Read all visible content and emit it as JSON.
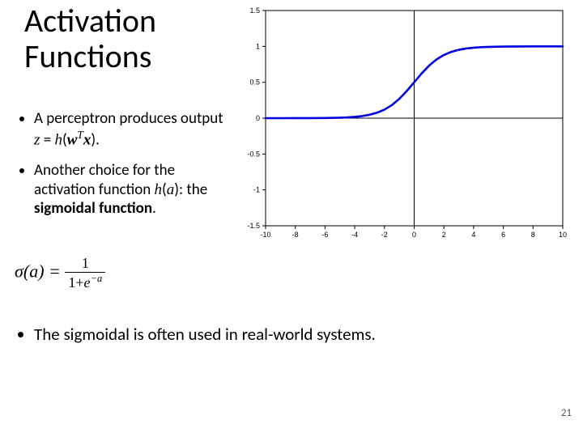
{
  "title_line1": "Activation",
  "title_line2": "Functions",
  "bullet1_pre": "A perceptron produces output ",
  "bullet1_math_z": "z",
  "bullet1_math_eq": " = ",
  "bullet1_math_h": "h",
  "bullet1_math_open": "(",
  "bullet1_math_w": "w",
  "bullet1_math_T": "T",
  "bullet1_math_x": "x",
  "bullet1_math_close": ")",
  "bullet1_post": ".",
  "bullet2_pre": "Another choice for the activation function ",
  "bullet2_math_h": "h",
  "bullet2_math_open": "(",
  "bullet2_math_a": "a",
  "bullet2_math_close": ")",
  "bullet2_mid": ": the ",
  "bullet2_bold": "sigmoidal function",
  "bullet2_post": ".",
  "formula_sigma": "σ",
  "formula_open": "(",
  "formula_a": "a",
  "formula_close": ")",
  "formula_eq": " = ",
  "formula_num": "1",
  "formula_den_1": "1+",
  "formula_den_e": "e",
  "formula_den_exp": "−a",
  "bullet3": "The sigmoidal is often used in real-world systems.",
  "page_number": "21",
  "chart": {
    "type": "line",
    "xlim": [
      -10,
      10
    ],
    "ylim": [
      -1.5,
      1.5
    ],
    "xticks": [
      -10,
      -8,
      -6,
      -4,
      -2,
      0,
      2,
      4,
      6,
      8,
      10
    ],
    "yticks": [
      -1.5,
      -1,
      -0.5,
      0,
      0.5,
      1,
      1.5
    ],
    "tick_fontsize": 9,
    "axis_box_color": "#000000",
    "zero_axis_color": "#000000",
    "line_color": "#0000e0",
    "line_width": 2.6,
    "background_color": "#ffffff",
    "tick_label_color": "#000000",
    "data": [
      {
        "x": -10,
        "y": 4.54e-05
      },
      {
        "x": -9,
        "y": 0.000123
      },
      {
        "x": -8,
        "y": 0.000335
      },
      {
        "x": -7,
        "y": 0.000911
      },
      {
        "x": -6,
        "y": 0.002473
      },
      {
        "x": -5,
        "y": 0.006693
      },
      {
        "x": -4.5,
        "y": 0.010987
      },
      {
        "x": -4,
        "y": 0.017986
      },
      {
        "x": -3.5,
        "y": 0.029312
      },
      {
        "x": -3,
        "y": 0.047426
      },
      {
        "x": -2.5,
        "y": 0.075858
      },
      {
        "x": -2,
        "y": 0.119203
      },
      {
        "x": -1.5,
        "y": 0.182426
      },
      {
        "x": -1,
        "y": 0.268941
      },
      {
        "x": -0.5,
        "y": 0.377541
      },
      {
        "x": 0,
        "y": 0.5
      },
      {
        "x": 0.5,
        "y": 0.622459
      },
      {
        "x": 1,
        "y": 0.731059
      },
      {
        "x": 1.5,
        "y": 0.817574
      },
      {
        "x": 2,
        "y": 0.880797
      },
      {
        "x": 2.5,
        "y": 0.924142
      },
      {
        "x": 3,
        "y": 0.952574
      },
      {
        "x": 3.5,
        "y": 0.970688
      },
      {
        "x": 4,
        "y": 0.982014
      },
      {
        "x": 4.5,
        "y": 0.989013
      },
      {
        "x": 5,
        "y": 0.993307
      },
      {
        "x": 6,
        "y": 0.997527
      },
      {
        "x": 7,
        "y": 0.999089
      },
      {
        "x": 8,
        "y": 0.999665
      },
      {
        "x": 9,
        "y": 0.999877
      },
      {
        "x": 10,
        "y": 0.999955
      }
    ]
  }
}
